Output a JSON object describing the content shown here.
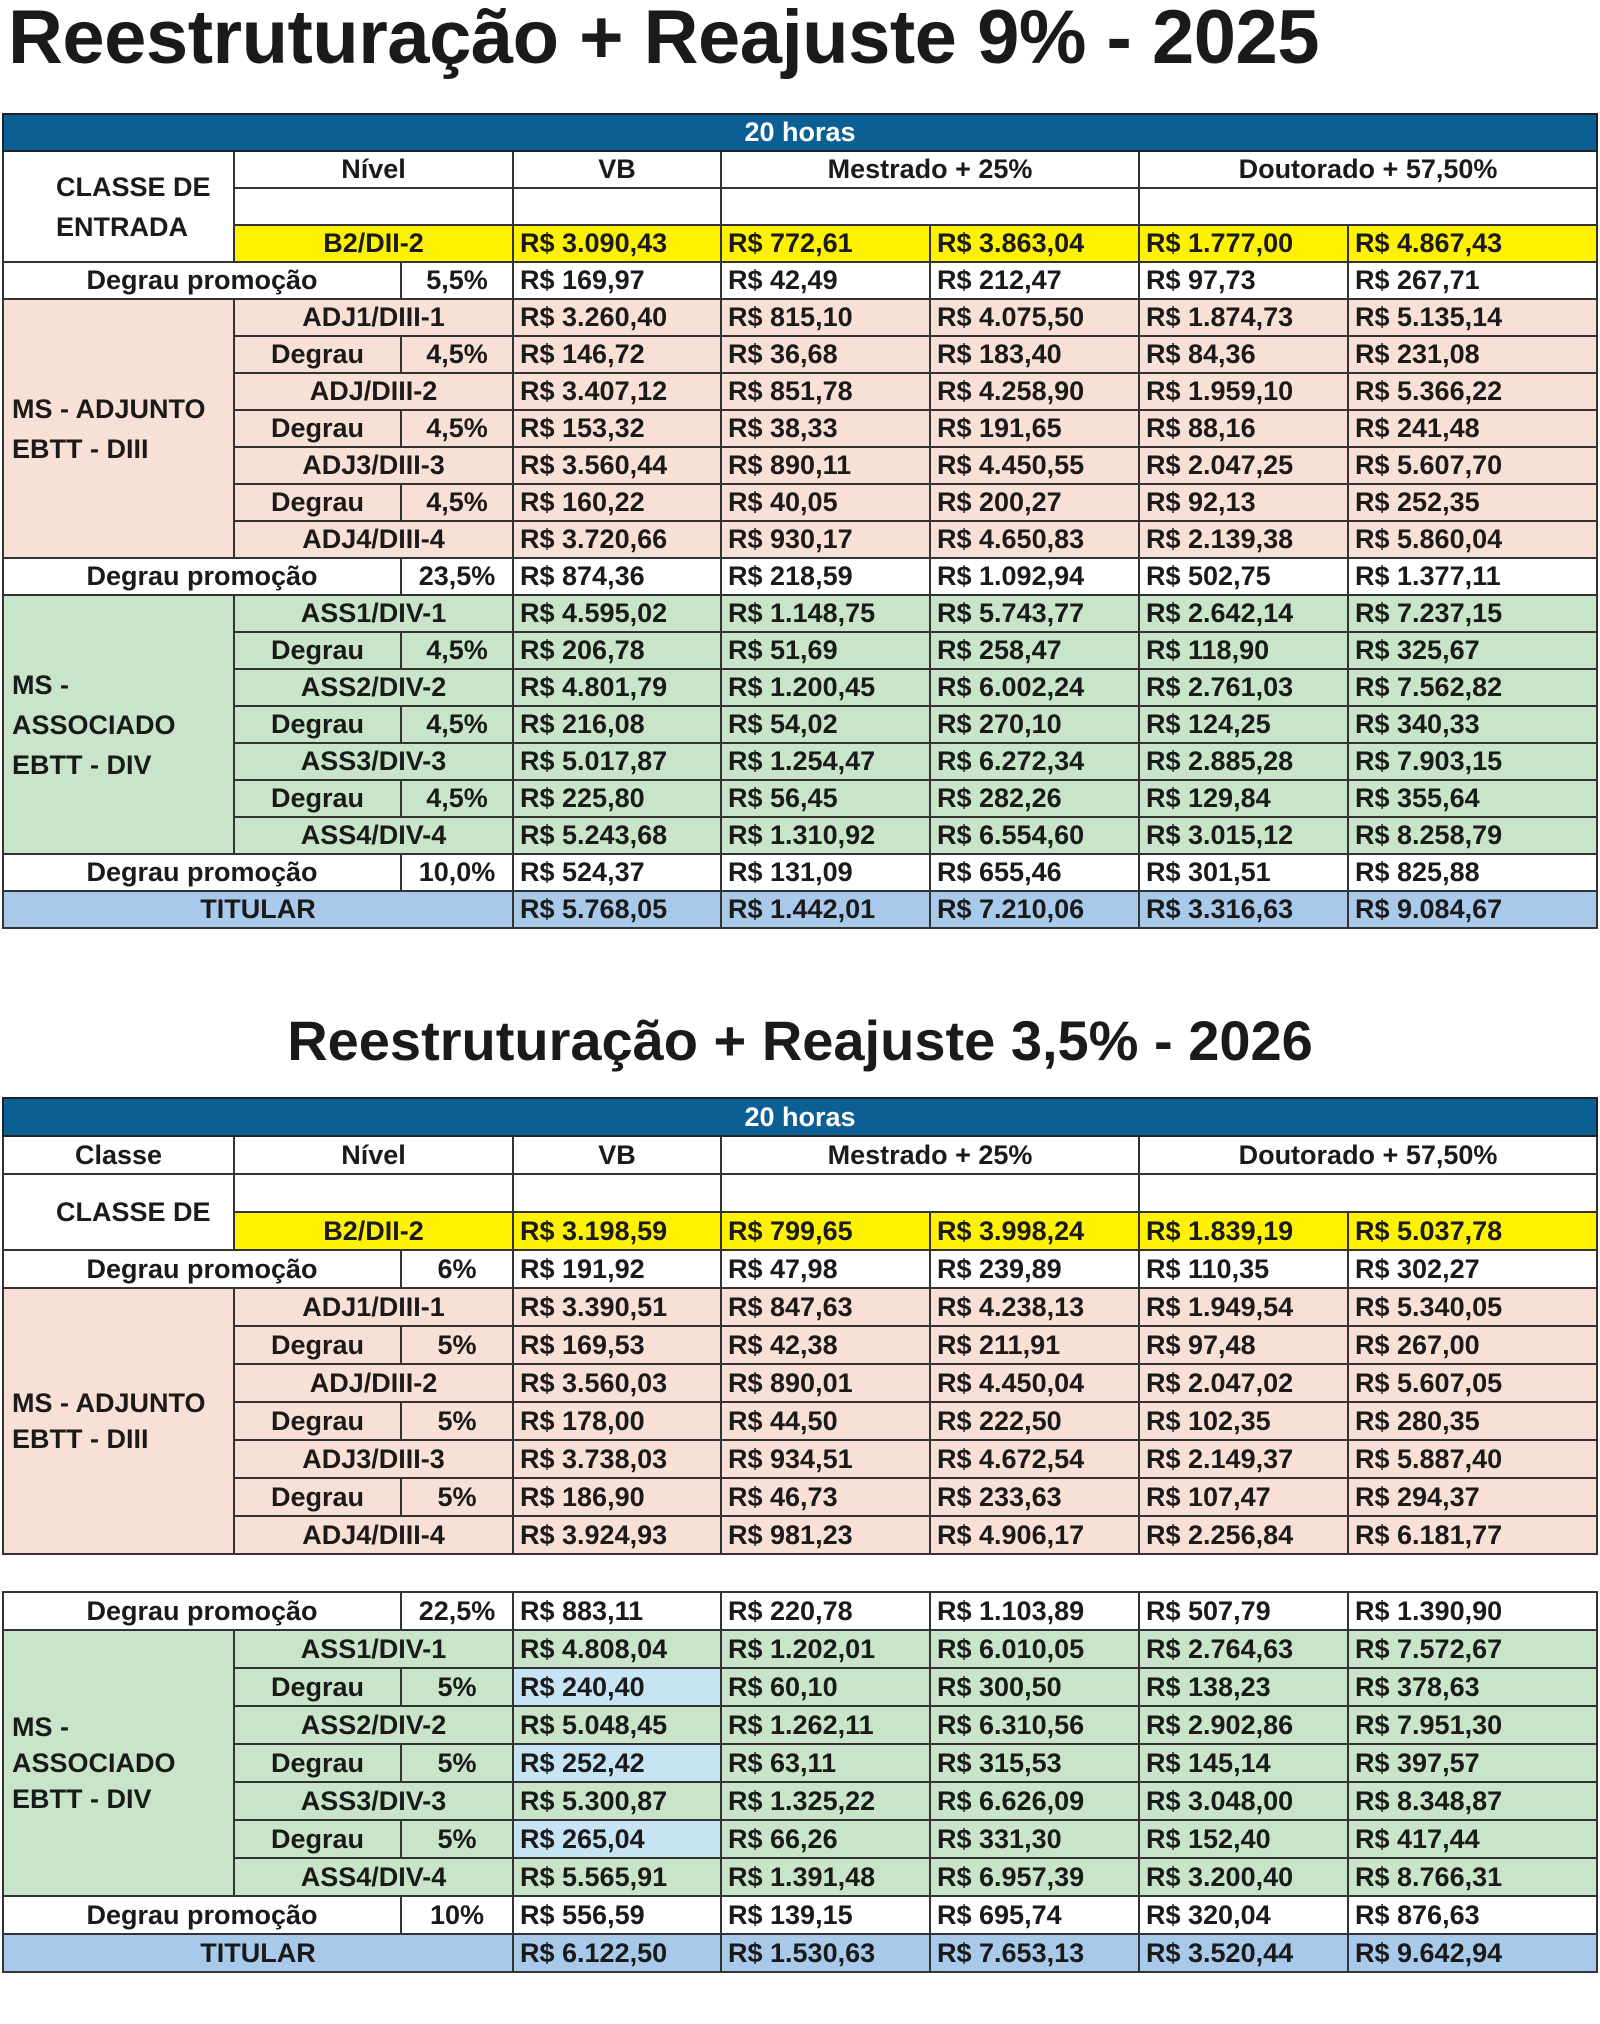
{
  "colors": {
    "banner": "#0b5f95",
    "entry": "#fff200",
    "adjunto": "#f9e0d6",
    "associado": "#c9e5c9",
    "titular": "#a9c9ea",
    "promo": "#ffffff",
    "highlight": "#c7e4f4"
  },
  "tables": [
    {
      "title": "Reestruturação + Reajuste 9% - 2025",
      "header": {
        "banner": "20 horas",
        "classe": "",
        "nivel": "Nível",
        "vb": "VB",
        "mestrado": "Mestrado +   25%",
        "doutorado": "Doutorado +   57,50%"
      },
      "entry": {
        "label": "CLASSE DE ENTRADA",
        "nivel": "B2/DII-2",
        "values": [
          "R$ 3.090,43",
          "R$ 772,61",
          "R$ 3.863,04",
          "R$ 1.777,00",
          "R$ 4.867,43"
        ]
      },
      "promo1": {
        "label": "Degrau promoção",
        "pct": "5,5%",
        "values": [
          "R$ 169,97",
          "R$ 42,49",
          "R$ 212,47",
          "R$ 97,73",
          "R$ 267,71"
        ]
      },
      "group1": {
        "label": "MS - ADJUNTO EBTT - DIII",
        "rows": [
          {
            "nivel": "ADJ1/DIII-1",
            "values": [
              "R$ 3.260,40",
              "R$ 815,10",
              "R$ 4.075,50",
              "R$ 1.874,73",
              "R$ 5.135,14"
            ]
          },
          {
            "label": "Degrau",
            "pct": "4,5%",
            "values": [
              "R$ 146,72",
              "R$ 36,68",
              "R$ 183,40",
              "R$ 84,36",
              "R$ 231,08"
            ]
          },
          {
            "nivel": "ADJ/DIII-2",
            "values": [
              "R$ 3.407,12",
              "R$ 851,78",
              "R$ 4.258,90",
              "R$ 1.959,10",
              "R$ 5.366,22"
            ]
          },
          {
            "label": "Degrau",
            "pct": "4,5%",
            "values": [
              "R$ 153,32",
              "R$ 38,33",
              "R$ 191,65",
              "R$ 88,16",
              "R$ 241,48"
            ]
          },
          {
            "nivel": "ADJ3/DIII-3",
            "values": [
              "R$ 3.560,44",
              "R$ 890,11",
              "R$ 4.450,55",
              "R$ 2.047,25",
              "R$ 5.607,70"
            ]
          },
          {
            "label": "Degrau",
            "pct": "4,5%",
            "values": [
              "R$ 160,22",
              "R$ 40,05",
              "R$ 200,27",
              "R$ 92,13",
              "R$ 252,35"
            ]
          },
          {
            "nivel": "ADJ4/DIII-4",
            "values": [
              "R$ 3.720,66",
              "R$ 930,17",
              "R$ 4.650,83",
              "R$ 2.139,38",
              "R$ 5.860,04"
            ]
          }
        ]
      },
      "promo2": {
        "label": "Degrau promoção",
        "pct": "23,5%",
        "values": [
          "R$ 874,36",
          "R$ 218,59",
          "R$ 1.092,94",
          "R$ 502,75",
          "R$ 1.377,11"
        ]
      },
      "group2": {
        "label": "MS - ASSOCIADO EBTT - DIV",
        "rows": [
          {
            "nivel": "ASS1/DIV-1",
            "values": [
              "R$ 4.595,02",
              "R$ 1.148,75",
              "R$ 5.743,77",
              "R$ 2.642,14",
              "R$ 7.237,15"
            ]
          },
          {
            "label": "Degrau",
            "pct": "4,5%",
            "values": [
              "R$ 206,78",
              "R$ 51,69",
              "R$ 258,47",
              "R$ 118,90",
              "R$ 325,67"
            ]
          },
          {
            "nivel": "ASS2/DIV-2",
            "values": [
              "R$ 4.801,79",
              "R$ 1.200,45",
              "R$ 6.002,24",
              "R$ 2.761,03",
              "R$ 7.562,82"
            ]
          },
          {
            "label": "Degrau",
            "pct": "4,5%",
            "values": [
              "R$ 216,08",
              "R$ 54,02",
              "R$ 270,10",
              "R$ 124,25",
              "R$ 340,33"
            ]
          },
          {
            "nivel": "ASS3/DIV-3",
            "values": [
              "R$ 5.017,87",
              "R$ 1.254,47",
              "R$ 6.272,34",
              "R$ 2.885,28",
              "R$ 7.903,15"
            ]
          },
          {
            "label": "Degrau",
            "pct": "4,5%",
            "values": [
              "R$ 225,80",
              "R$ 56,45",
              "R$ 282,26",
              "R$ 129,84",
              "R$ 355,64"
            ]
          },
          {
            "nivel": "ASS4/DIV-4",
            "values": [
              "R$ 5.243,68",
              "R$ 1.310,92",
              "R$ 6.554,60",
              "R$ 3.015,12",
              "R$ 8.258,79"
            ]
          }
        ]
      },
      "promo3": {
        "label": "Degrau promoção",
        "pct": "10,0%",
        "values": [
          "R$ 524,37",
          "R$ 131,09",
          "R$ 655,46",
          "R$ 301,51",
          "R$ 825,88"
        ]
      },
      "titular": {
        "label": "TITULAR",
        "values": [
          "R$ 5.768,05",
          "R$ 1.442,01",
          "R$ 7.210,06",
          "R$ 3.316,63",
          "R$ 9.084,67"
        ]
      }
    },
    {
      "title": "Reestruturação + Reajuste 3,5% - 2026",
      "header": {
        "banner": "20 horas",
        "classe": "Classe",
        "nivel": "Nível",
        "vb": "VB",
        "mestrado": "Mestrado +   25%",
        "doutorado": "Doutorado +   57,50%"
      },
      "entry": {
        "label": "CLASSE DE",
        "nivel": "B2/DII-2",
        "values": [
          "R$ 3.198,59",
          "R$ 799,65",
          "R$ 3.998,24",
          "R$ 1.839,19",
          "R$ 5.037,78"
        ]
      },
      "promo1": {
        "label": "Degrau promoção",
        "pct": "6%",
        "values": [
          "R$ 191,92",
          "R$ 47,98",
          "R$ 239,89",
          "R$ 110,35",
          "R$ 302,27"
        ]
      },
      "group1": {
        "label": "MS - ADJUNTO EBTT - DIII",
        "rows": [
          {
            "nivel": "ADJ1/DIII-1",
            "values": [
              "R$ 3.390,51",
              "R$ 847,63",
              "R$ 4.238,13",
              "R$ 1.949,54",
              "R$ 5.340,05"
            ]
          },
          {
            "label": "Degrau",
            "pct": "5%",
            "values": [
              "R$ 169,53",
              "R$ 42,38",
              "R$ 211,91",
              "R$ 97,48",
              "R$ 267,00"
            ]
          },
          {
            "nivel": "ADJ/DIII-2",
            "values": [
              "R$ 3.560,03",
              "R$ 890,01",
              "R$ 4.450,04",
              "R$ 2.047,02",
              "R$ 5.607,05"
            ]
          },
          {
            "label": "Degrau",
            "pct": "5%",
            "values": [
              "R$ 178,00",
              "R$ 44,50",
              "R$ 222,50",
              "R$ 102,35",
              "R$ 280,35"
            ]
          },
          {
            "nivel": "ADJ3/DIII-3",
            "values": [
              "R$ 3.738,03",
              "R$ 934,51",
              "R$ 4.672,54",
              "R$ 2.149,37",
              "R$ 5.887,40"
            ]
          },
          {
            "label": "Degrau",
            "pct": "5%",
            "values": [
              "R$ 186,90",
              "R$ 46,73",
              "R$ 233,63",
              "R$ 107,47",
              "R$ 294,37"
            ]
          },
          {
            "nivel": "ADJ4/DIII-4",
            "values": [
              "R$ 3.924,93",
              "R$ 981,23",
              "R$ 4.906,17",
              "R$ 2.256,84",
              "R$ 6.181,77"
            ]
          }
        ]
      },
      "promo2": {
        "label": "Degrau promoção",
        "pct": "22,5%",
        "values": [
          "R$ 883,11",
          "R$ 220,78",
          "R$ 1.103,89",
          "R$ 507,79",
          "R$ 1.390,90"
        ]
      },
      "group2": {
        "label": "MS - ASSOCIADO EBTT - DIV",
        "rows": [
          {
            "nivel": "ASS1/DIV-1",
            "values": [
              "R$ 4.808,04",
              "R$ 1.202,01",
              "R$ 6.010,05",
              "R$ 2.764,63",
              "R$ 7.572,67"
            ]
          },
          {
            "label": "Degrau",
            "pct": "5%",
            "highlight_vb": true,
            "values": [
              "R$ 240,40",
              "R$ 60,10",
              "R$ 300,50",
              "R$ 138,23",
              "R$ 378,63"
            ]
          },
          {
            "nivel": "ASS2/DIV-2",
            "values": [
              "R$ 5.048,45",
              "R$ 1.262,11",
              "R$ 6.310,56",
              "R$ 2.902,86",
              "R$ 7.951,30"
            ]
          },
          {
            "label": "Degrau",
            "pct": "5%",
            "highlight_vb": true,
            "values": [
              "R$ 252,42",
              "R$ 63,11",
              "R$ 315,53",
              "R$ 145,14",
              "R$ 397,57"
            ]
          },
          {
            "nivel": "ASS3/DIV-3",
            "values": [
              "R$ 5.300,87",
              "R$ 1.325,22",
              "R$ 6.626,09",
              "R$ 3.048,00",
              "R$ 8.348,87"
            ]
          },
          {
            "label": "Degrau",
            "pct": "5%",
            "highlight_vb": true,
            "values": [
              "R$ 265,04",
              "R$ 66,26",
              "R$ 331,30",
              "R$ 152,40",
              "R$ 417,44"
            ]
          },
          {
            "nivel": "ASS4/DIV-4",
            "values": [
              "R$ 5.565,91",
              "R$ 1.391,48",
              "R$ 6.957,39",
              "R$ 3.200,40",
              "R$ 8.766,31"
            ]
          }
        ]
      },
      "promo3": {
        "label": "Degrau promoção",
        "pct": "10%",
        "values": [
          "R$ 556,59",
          "R$ 139,15",
          "R$ 695,74",
          "R$ 320,04",
          "R$ 876,63"
        ]
      },
      "titular": {
        "label": "TITULAR",
        "values": [
          "R$ 6.122,50",
          "R$ 1.530,63",
          "R$ 7.653,13",
          "R$ 3.520,44",
          "R$ 9.642,94"
        ]
      }
    }
  ]
}
